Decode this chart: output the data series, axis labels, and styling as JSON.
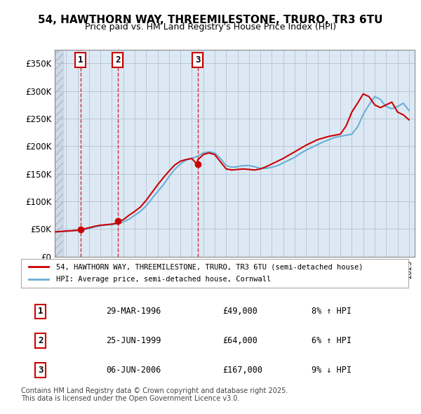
{
  "title": "54, HAWTHORN WAY, THREEMILESTONE, TRURO, TR3 6TU",
  "subtitle": "Price paid vs. HM Land Registry's House Price Index (HPI)",
  "legend_line1": "54, HAWTHORN WAY, THREEMILESTONE, TRURO, TR3 6TU (semi-detached house)",
  "legend_line2": "HPI: Average price, semi-detached house, Cornwall",
  "footer": "Contains HM Land Registry data © Crown copyright and database right 2025.\nThis data is licensed under the Open Government Licence v3.0.",
  "sale_dates": [
    "1996-03-29",
    "1999-06-25",
    "2006-06-06"
  ],
  "sale_prices": [
    49000,
    64000,
    167000
  ],
  "sale_labels": [
    "1",
    "2",
    "3"
  ],
  "sale_table": [
    [
      "1",
      "29-MAR-1996",
      "£49,000",
      "8% ↑ HPI"
    ],
    [
      "2",
      "25-JUN-1999",
      "£64,000",
      "6% ↑ HPI"
    ],
    [
      "3",
      "06-JUN-2006",
      "£167,000",
      "9% ↓ HPI"
    ]
  ],
  "hpi_color": "#6aaed6",
  "price_color": "#cc0000",
  "background_color": "#ffffff",
  "plot_bg_color": "#dce9f5",
  "hatch_color": "#c0c8d8",
  "grid_color": "#b0b8c8",
  "ylim": [
    0,
    375000
  ],
  "yticks": [
    0,
    50000,
    100000,
    150000,
    200000,
    250000,
    300000,
    350000
  ],
  "ytick_labels": [
    "£0",
    "£50K",
    "£100K",
    "£150K",
    "£200K",
    "£250K",
    "£300K",
    "£350K"
  ],
  "xlim_start": 1994.0,
  "xlim_end": 2025.5,
  "hpi_years": [
    1994,
    1994.5,
    1995,
    1995.5,
    1996,
    1996.5,
    1997,
    1997.5,
    1998,
    1998.5,
    1999,
    1999.5,
    2000,
    2000.5,
    2001,
    2001.5,
    2002,
    2002.5,
    2003,
    2003.5,
    2004,
    2004.5,
    2005,
    2005.5,
    2006,
    2006.5,
    2007,
    2007.5,
    2008,
    2008.5,
    2009,
    2009.5,
    2010,
    2010.5,
    2011,
    2011.5,
    2012,
    2012.5,
    2013,
    2013.5,
    2014,
    2014.5,
    2015,
    2015.5,
    2016,
    2016.5,
    2017,
    2017.5,
    2018,
    2018.5,
    2019,
    2019.5,
    2020,
    2020.5,
    2021,
    2021.5,
    2022,
    2022.5,
    2023,
    2023.5,
    2024,
    2024.5,
    2025
  ],
  "hpi_values": [
    45000,
    45500,
    46000,
    46800,
    47500,
    49000,
    51000,
    54000,
    56000,
    57500,
    58000,
    60000,
    63000,
    68000,
    75000,
    82000,
    92000,
    105000,
    118000,
    130000,
    145000,
    158000,
    168000,
    175000,
    178000,
    182000,
    188000,
    190000,
    188000,
    178000,
    165000,
    162000,
    163000,
    165000,
    165000,
    163000,
    160000,
    160000,
    162000,
    165000,
    170000,
    175000,
    180000,
    187000,
    193000,
    198000,
    203000,
    208000,
    212000,
    216000,
    218000,
    220000,
    222000,
    235000,
    258000,
    275000,
    290000,
    285000,
    272000,
    268000,
    272000,
    278000,
    265000
  ],
  "price_years": [
    1994,
    1994.5,
    1995,
    1995.5,
    1996,
    1996.3,
    1996.5,
    1997,
    1997.5,
    1998,
    1998.5,
    1999,
    1999.5,
    1999.55,
    2000,
    2000.5,
    2001,
    2001.5,
    2002,
    2002.5,
    2003,
    2003.5,
    2004,
    2004.5,
    2005,
    2005.5,
    2006,
    2006.45,
    2006.5,
    2007,
    2007.5,
    2008,
    2008.5,
    2009,
    2009.5,
    2010,
    2010.5,
    2011,
    2011.5,
    2012,
    2012.5,
    2013,
    2013.5,
    2014,
    2014.5,
    2015,
    2015.5,
    2016,
    2016.5,
    2017,
    2017.5,
    2018,
    2018.5,
    2019,
    2019.5,
    2020,
    2020.5,
    2021,
    2021.5,
    2022,
    2022.5,
    2023,
    2023.5,
    2024,
    2024.5,
    2025
  ],
  "price_values": [
    45000,
    45500,
    46500,
    47000,
    48000,
    49000,
    50000,
    52500,
    55000,
    57000,
    58000,
    59000,
    61000,
    64000,
    67000,
    75000,
    82000,
    90000,
    102000,
    116000,
    130000,
    143000,
    155000,
    166000,
    173000,
    176000,
    178000,
    167000,
    175000,
    185000,
    188000,
    185000,
    172000,
    159000,
    157000,
    158000,
    159000,
    158000,
    157000,
    159000,
    163000,
    168000,
    173000,
    178000,
    184000,
    190000,
    196000,
    202000,
    207000,
    212000,
    215000,
    218000,
    220000,
    222000,
    237000,
    262000,
    278000,
    295000,
    290000,
    275000,
    270000,
    275000,
    280000,
    262000,
    257000,
    248000
  ]
}
